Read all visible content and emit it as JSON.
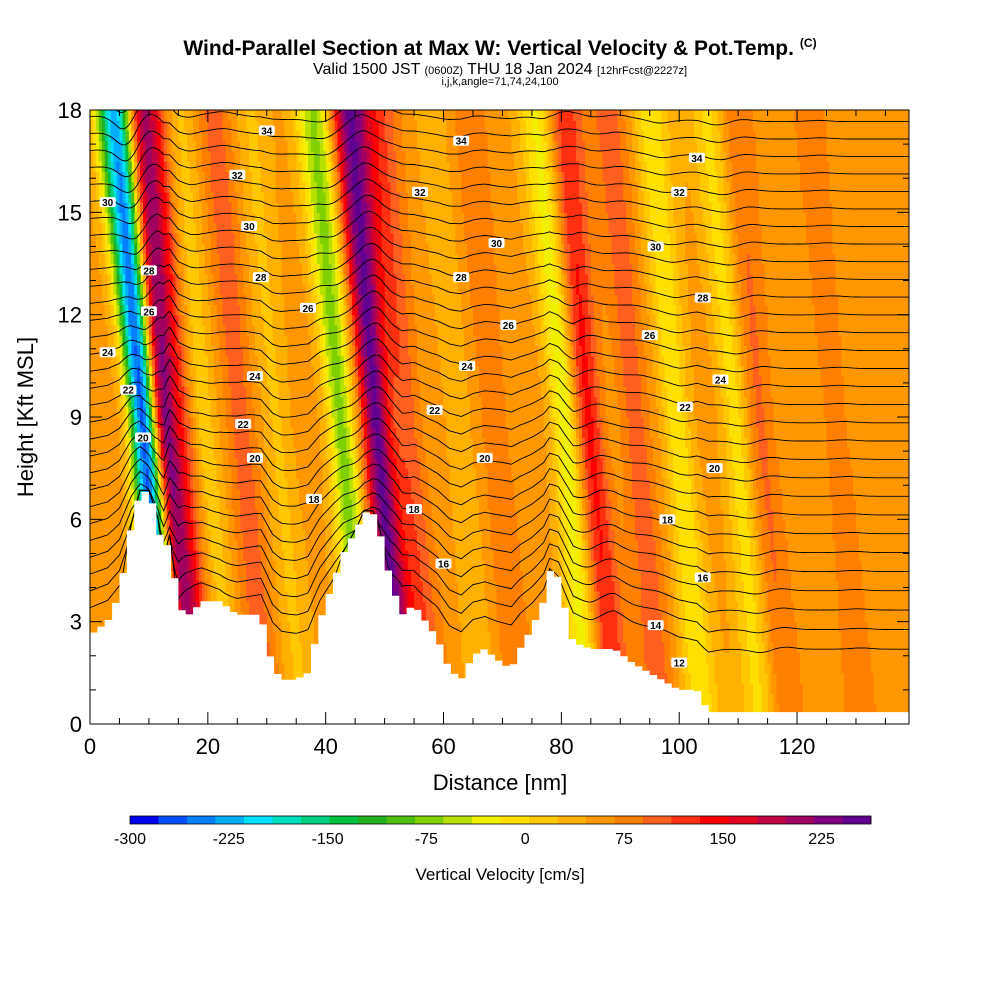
{
  "header": {
    "title": "Wind-Parallel Section at Max W: Vertical Velocity & Pot.Temp.",
    "copyright": "(C)",
    "valid_prefix": "Valid 1500 JST",
    "valid_utc": "(0600Z)",
    "valid_date": "THU 18 Jan 2024",
    "forecast": "[12hrFcst@2227z]",
    "grid_info": "i,j,k,angle=71,74,24,100"
  },
  "chart_data": {
    "type": "heatmap",
    "xlabel": "Distance [nm]",
    "ylabel": "Height [Kft MSL]",
    "xlim": [
      0,
      139
    ],
    "ylim": [
      0,
      18
    ],
    "x_ticks": [
      "0",
      "20",
      "40",
      "60",
      "80",
      "100",
      "120"
    ],
    "y_ticks": [
      "0",
      "3",
      "6",
      "9",
      "12",
      "15",
      "18"
    ],
    "colorbar": {
      "label": "Vertical Velocity [cm/s]",
      "ticks": [
        "-300",
        "-225",
        "-150",
        "-75",
        "0",
        "75",
        "150",
        "225"
      ],
      "range": [
        -300,
        262.5
      ],
      "step": 18.75,
      "colors": [
        "#0000f0",
        "#0050ff",
        "#0080ff",
        "#00b0ff",
        "#00e0ff",
        "#00e0c0",
        "#00d080",
        "#00c040",
        "#20b020",
        "#50c010",
        "#80d000",
        "#b8e000",
        "#f0f000",
        "#ffe000",
        "#ffc800",
        "#ffb000",
        "#ff9800",
        "#ff8000",
        "#ff6020",
        "#ff3010",
        "#ff0000",
        "#e00020",
        "#c00040",
        "#a00060",
        "#800080",
        "#600090"
      ]
    },
    "velocity_bands": [
      {
        "x": 10.5,
        "w": -290
      },
      {
        "x": 14,
        "w": 160
      },
      {
        "x": 17.5,
        "w": 45
      },
      {
        "x": 20.5,
        "w": -45
      },
      {
        "x": 27,
        "w": 40
      },
      {
        "x": 33,
        "w": -30
      },
      {
        "x": 44,
        "w": -110
      },
      {
        "x": 50,
        "w": 165
      },
      {
        "x": 55,
        "w": 45
      },
      {
        "x": 64,
        "w": -20
      },
      {
        "x": 70,
        "w": 25
      },
      {
        "x": 82,
        "w": -80
      },
      {
        "x": 86,
        "w": 75
      },
      {
        "x": 94,
        "w": 40
      },
      {
        "x": 101,
        "w": -60
      },
      {
        "x": 111,
        "w": -55
      },
      {
        "x": 115,
        "w": 35
      },
      {
        "x": 128,
        "w": 20
      }
    ],
    "terrain": [
      [
        0,
        2.6
      ],
      [
        3,
        3.0
      ],
      [
        5,
        3.8
      ],
      [
        7,
        5.8
      ],
      [
        8.5,
        6.8
      ],
      [
        10,
        6.8
      ],
      [
        11.5,
        6.0
      ],
      [
        12.5,
        4.8
      ],
      [
        13.5,
        5.5
      ],
      [
        15,
        3.4
      ],
      [
        17,
        3.2
      ],
      [
        19,
        3.6
      ],
      [
        22,
        3.6
      ],
      [
        25,
        3.2
      ],
      [
        29,
        3.2
      ],
      [
        31,
        1.7
      ],
      [
        32.5,
        1.3
      ],
      [
        35,
        1.3
      ],
      [
        37,
        1.5
      ],
      [
        39,
        3.0
      ],
      [
        43,
        5.0
      ],
      [
        45.5,
        5.8
      ],
      [
        46.5,
        6.2
      ],
      [
        48,
        6.2
      ],
      [
        49,
        5.8
      ],
      [
        51,
        4.2
      ],
      [
        53,
        3.2
      ],
      [
        55,
        3.5
      ],
      [
        57,
        3.0
      ],
      [
        59,
        2.5
      ],
      [
        61,
        1.6
      ],
      [
        63,
        1.3
      ],
      [
        65,
        2.0
      ],
      [
        67,
        2.2
      ],
      [
        69,
        1.9
      ],
      [
        71.5,
        1.6
      ],
      [
        73,
        2.2
      ],
      [
        75,
        2.8
      ],
      [
        77,
        3.6
      ],
      [
        78,
        4.5
      ],
      [
        79.5,
        4.3
      ],
      [
        80.5,
        3.5
      ],
      [
        82,
        2.4
      ],
      [
        85,
        2.2
      ],
      [
        89,
        2.2
      ],
      [
        92,
        1.8
      ],
      [
        95,
        1.5
      ],
      [
        98,
        1.2
      ],
      [
        100,
        1.0
      ],
      [
        103,
        1.0
      ],
      [
        105,
        0.35
      ],
      [
        139,
        0.35
      ]
    ],
    "isentropes": {
      "base_height": 3.3,
      "theta_at_base": 14.6,
      "spacing_kft": 0.5,
      "count": 33
    },
    "contour_labels": [
      {
        "x": 30,
        "y": 17.4,
        "text": "34"
      },
      {
        "x": 63,
        "y": 17.1,
        "text": "34"
      },
      {
        "x": 103,
        "y": 16.6,
        "text": "34"
      },
      {
        "x": 25,
        "y": 16.1,
        "text": "32"
      },
      {
        "x": 56,
        "y": 15.6,
        "text": "32"
      },
      {
        "x": 100,
        "y": 15.6,
        "text": "32"
      },
      {
        "x": 3,
        "y": 15.3,
        "text": "30"
      },
      {
        "x": 27,
        "y": 14.6,
        "text": "30"
      },
      {
        "x": 69,
        "y": 14.1,
        "text": "30"
      },
      {
        "x": 96,
        "y": 14.0,
        "text": "30"
      },
      {
        "x": 10,
        "y": 13.3,
        "text": "28"
      },
      {
        "x": 29,
        "y": 13.1,
        "text": "28"
      },
      {
        "x": 63,
        "y": 13.1,
        "text": "28"
      },
      {
        "x": 104,
        "y": 12.5,
        "text": "28"
      },
      {
        "x": 10,
        "y": 12.1,
        "text": "26"
      },
      {
        "x": 37,
        "y": 12.2,
        "text": "26"
      },
      {
        "x": 71,
        "y": 11.7,
        "text": "26"
      },
      {
        "x": 95,
        "y": 11.4,
        "text": "26"
      },
      {
        "x": 3,
        "y": 10.9,
        "text": "24"
      },
      {
        "x": 28,
        "y": 10.2,
        "text": "24"
      },
      {
        "x": 64,
        "y": 10.5,
        "text": "24"
      },
      {
        "x": 107,
        "y": 10.1,
        "text": "24"
      },
      {
        "x": 6.5,
        "y": 9.8,
        "text": "22"
      },
      {
        "x": 26,
        "y": 8.8,
        "text": "22"
      },
      {
        "x": 58.5,
        "y": 9.2,
        "text": "22"
      },
      {
        "x": 101,
        "y": 9.3,
        "text": "22"
      },
      {
        "x": 9,
        "y": 8.4,
        "text": "20"
      },
      {
        "x": 28,
        "y": 7.8,
        "text": "20"
      },
      {
        "x": 67,
        "y": 7.8,
        "text": "20"
      },
      {
        "x": 106,
        "y": 7.5,
        "text": "20"
      },
      {
        "x": 38,
        "y": 6.6,
        "text": "18"
      },
      {
        "x": 55,
        "y": 6.3,
        "text": "18"
      },
      {
        "x": 98,
        "y": 6.0,
        "text": "18"
      },
      {
        "x": 60,
        "y": 4.7,
        "text": "16"
      },
      {
        "x": 104,
        "y": 4.3,
        "text": "16"
      },
      {
        "x": 96,
        "y": 2.9,
        "text": "14"
      },
      {
        "x": 100,
        "y": 1.8,
        "text": "12"
      }
    ]
  }
}
